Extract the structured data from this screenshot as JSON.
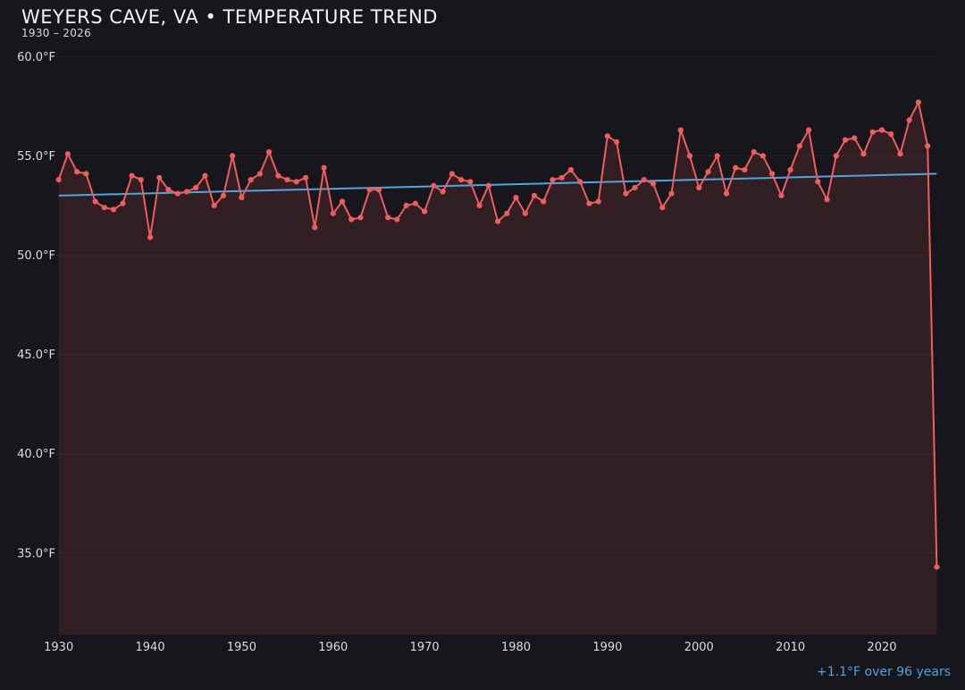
{
  "header": {
    "title": "WEYERS CAVE, VA • TEMPERATURE TREND",
    "subtitle": "1930 – 2026"
  },
  "footer": {
    "annotation": "+1.1°F over 96 years"
  },
  "colors": {
    "background": "#16161c",
    "series_line": "#ef5d5d",
    "series_fill": "rgba(239,93,93,0.13)",
    "trend_line": "#4fa6dc",
    "annotation_text": "#4da3e0",
    "tick_text": "#dcdce0",
    "gridline": "rgba(255,255,255,0.055)"
  },
  "chart_data": {
    "type": "line",
    "title": "WEYERS CAVE, VA • TEMPERATURE TREND",
    "subtitle": "1930 – 2026",
    "xlabel": "",
    "ylabel": "",
    "grid": "horizontal-only",
    "legend": "none",
    "x_ticks": [
      1930,
      1940,
      1950,
      1960,
      1970,
      1980,
      1990,
      2000,
      2010,
      2020
    ],
    "y_ticks": [
      60.0,
      55.0,
      50.0,
      45.0,
      40.0,
      35.0
    ],
    "y_tick_labels": [
      "60.0°F",
      "55.0°F",
      "50.0°F",
      "45.0°F",
      "40.0°F",
      "35.0°F"
    ],
    "xlim": [
      1930,
      2026
    ],
    "ylim": [
      30.9,
      60.8
    ],
    "x": [
      1930,
      1931,
      1932,
      1933,
      1934,
      1935,
      1936,
      1937,
      1938,
      1939,
      1940,
      1941,
      1942,
      1943,
      1944,
      1945,
      1946,
      1947,
      1948,
      1949,
      1950,
      1951,
      1952,
      1953,
      1954,
      1955,
      1956,
      1957,
      1958,
      1959,
      1960,
      1961,
      1962,
      1963,
      1964,
      1965,
      1966,
      1967,
      1968,
      1969,
      1970,
      1971,
      1972,
      1973,
      1974,
      1975,
      1976,
      1977,
      1978,
      1979,
      1980,
      1981,
      1982,
      1983,
      1984,
      1985,
      1986,
      1987,
      1988,
      1989,
      1990,
      1991,
      1992,
      1993,
      1994,
      1995,
      1996,
      1997,
      1998,
      1999,
      2000,
      2001,
      2002,
      2003,
      2004,
      2005,
      2006,
      2007,
      2008,
      2009,
      2010,
      2011,
      2012,
      2013,
      2014,
      2015,
      2016,
      2017,
      2018,
      2019,
      2020,
      2021,
      2022,
      2023,
      2024,
      2025,
      2026
    ],
    "series": [
      {
        "name": "annual-mean-temperature-f",
        "color": "#ef5d5d",
        "values": [
          53.8,
          55.1,
          54.2,
          54.1,
          52.7,
          52.4,
          52.3,
          52.6,
          54.0,
          53.8,
          50.9,
          53.9,
          53.3,
          53.1,
          53.2,
          53.4,
          54.0,
          52.5,
          53.0,
          55.0,
          52.9,
          53.8,
          54.1,
          55.2,
          54.0,
          53.8,
          53.7,
          53.9,
          51.4,
          54.4,
          52.1,
          52.7,
          51.8,
          51.9,
          53.3,
          53.3,
          51.9,
          51.8,
          52.5,
          52.6,
          52.2,
          53.5,
          53.2,
          54.1,
          53.8,
          53.7,
          52.5,
          53.5,
          51.7,
          52.1,
          52.9,
          52.1,
          53.0,
          52.7,
          53.8,
          53.9,
          54.3,
          53.7,
          52.6,
          52.7,
          56.0,
          55.7,
          53.1,
          53.4,
          53.8,
          53.6,
          52.4,
          53.1,
          56.3,
          55.0,
          53.4,
          54.2,
          55.0,
          53.1,
          54.4,
          54.3,
          55.2,
          55.0,
          54.1,
          53.0,
          54.3,
          55.5,
          56.3,
          53.7,
          52.8,
          55.0,
          55.8,
          55.9,
          55.1,
          56.2,
          56.3,
          56.1,
          55.1,
          56.8,
          57.7,
          55.5,
          34.3
        ]
      },
      {
        "name": "linear-trend",
        "color": "#4fa6dc",
        "trend": {
          "start_year": 1930,
          "start_value": 53.0,
          "end_year": 2026,
          "end_value": 54.1
        },
        "annotation": "+1.1°F over 96 years"
      }
    ]
  }
}
